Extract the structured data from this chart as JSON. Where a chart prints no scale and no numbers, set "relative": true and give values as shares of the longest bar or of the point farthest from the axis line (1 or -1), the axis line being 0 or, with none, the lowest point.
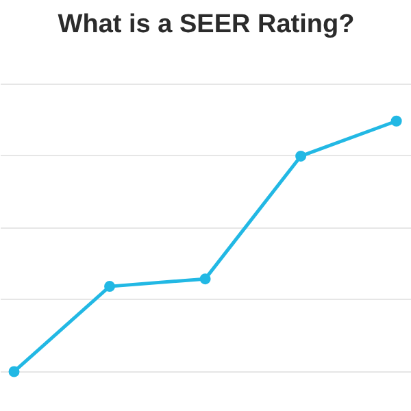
{
  "chart_data": {
    "type": "line",
    "title": "What is a SEER Rating?",
    "categories": [
      null,
      null,
      null,
      null,
      null
    ],
    "relative": true,
    "grid": "y",
    "marker": "circle",
    "line_style": "solid",
    "series": [
      {
        "color": "#22b8e4",
        "values": [
          0,
          0.34,
          0.37,
          0.86,
          1
        ]
      }
    ]
  }
}
